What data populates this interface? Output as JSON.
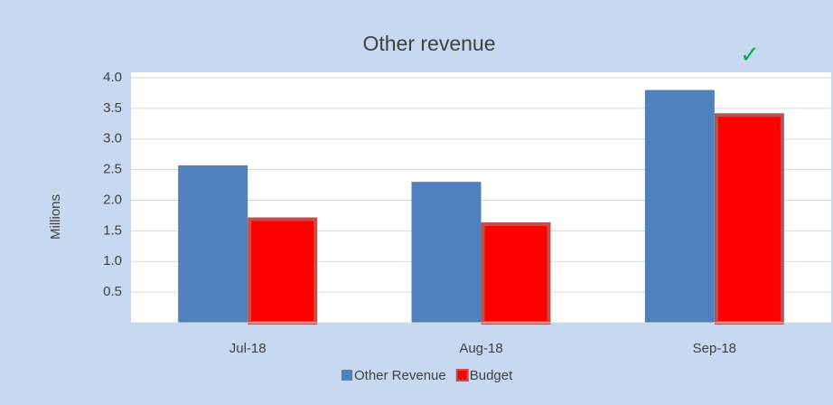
{
  "chart_data": {
    "type": "bar",
    "title": "Other revenue",
    "annotation": "✓",
    "y_label": "Millions",
    "categories": [
      "Jul-18",
      "Aug-18",
      "Sep-18"
    ],
    "series": [
      {
        "name": "Other Revenue",
        "color": "#4f81bd",
        "values": [
          2.57,
          2.3,
          3.8
        ]
      },
      {
        "name": "Budget",
        "color": "#ff0000",
        "values": [
          1.72,
          1.64,
          3.42
        ]
      }
    ],
    "ylim": [
      0,
      4
    ],
    "yticks": [
      0.5,
      {
        "value": 1,
        "label": "1.0"
      },
      1.5,
      {
        "value": 2,
        "label": "2.0"
      },
      2.5,
      {
        "value": 3,
        "label": "3.0"
      },
      3.5,
      {
        "value": 4,
        "label": "4.0"
      }
    ],
    "grid": true
  }
}
